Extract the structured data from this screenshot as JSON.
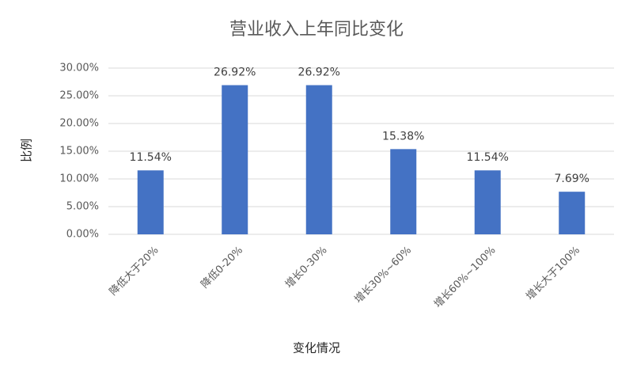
{
  "chart_data": {
    "type": "bar",
    "title": "营业收入上年同比变化",
    "x_label": "变化情况",
    "y_label": "比例",
    "categories": [
      "降低大于20%",
      "降低0-20%",
      "增长0-30%",
      "增长30%~60%",
      "增长60%~100%",
      "增长大于100%"
    ],
    "values": [
      11.54,
      26.92,
      26.92,
      15.38,
      11.54,
      7.69
    ],
    "value_labels": [
      "11.54%",
      "26.92%",
      "26.92%",
      "15.38%",
      "11.54%",
      "7.69%"
    ],
    "color": "#4472c4",
    "ylim": [
      0,
      30
    ],
    "yticks": [
      {
        "value": 0,
        "label": "0.00%"
      },
      {
        "value": 5,
        "label": "5.00%"
      },
      {
        "value": 10,
        "label": "10.00%"
      },
      {
        "value": 15,
        "label": "15.00%"
      },
      {
        "value": 20,
        "label": "20.00%"
      },
      {
        "value": 25,
        "label": "25.00%"
      },
      {
        "value": 30,
        "label": "30.00%"
      }
    ],
    "grid": true
  }
}
